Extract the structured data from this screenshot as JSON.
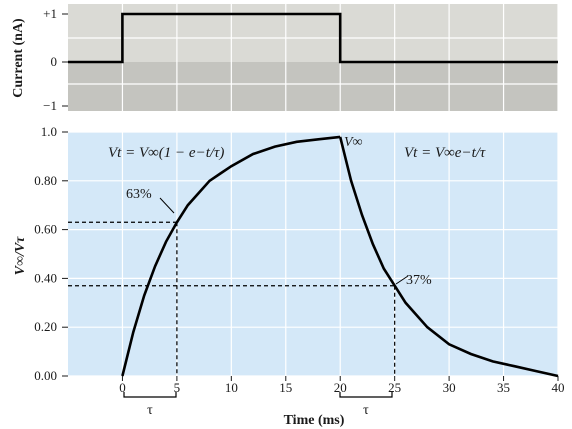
{
  "chart_data": [
    {
      "type": "line",
      "panel": "current",
      "ylabel": "Current (nA)",
      "yticks": [
        "+1",
        "0",
        "−1"
      ],
      "ytick_values": [
        1,
        0,
        -1
      ],
      "ylim": [
        -1.2,
        1.2
      ],
      "xlim": [
        -5,
        40
      ],
      "grid": true,
      "series": [
        {
          "x": [
            -5,
            0,
            0,
            20,
            20,
            40
          ],
          "y": [
            0,
            0,
            1,
            1,
            0,
            0
          ]
        }
      ],
      "colors": {
        "positive_region": "#dadad5",
        "negative_region": "#c4c4bf",
        "line": "#000000"
      }
    },
    {
      "type": "line",
      "panel": "voltage",
      "xlabel": "Time (ms)",
      "ylabel": "V∞/Vτ",
      "xticks": [
        "0",
        "5",
        "10",
        "15",
        "20",
        "25",
        "30",
        "35",
        "40"
      ],
      "xtick_values": [
        0,
        5,
        10,
        15,
        20,
        25,
        30,
        35,
        40
      ],
      "yticks": [
        "1.0",
        "0.80",
        "0.60",
        "0.40",
        "0.20",
        "0.00"
      ],
      "ytick_values": [
        1.0,
        0.8,
        0.6,
        0.4,
        0.2,
        0.0
      ],
      "xlim": [
        -5,
        40
      ],
      "ylim": [
        0,
        1.0
      ],
      "grid": true,
      "tau_ms": 5,
      "series": [
        {
          "x": [
            0,
            1,
            2,
            3,
            4,
            5,
            6,
            7,
            8,
            9,
            10,
            12,
            14,
            16,
            18,
            20
          ],
          "y": [
            0.0,
            0.18,
            0.33,
            0.45,
            0.55,
            0.63,
            0.7,
            0.75,
            0.8,
            0.83,
            0.86,
            0.91,
            0.94,
            0.96,
            0.97,
            0.98
          ]
        },
        {
          "x": [
            20,
            21,
            22,
            23,
            24,
            25,
            26,
            28,
            30,
            32,
            34,
            36,
            38,
            40
          ],
          "y": [
            0.98,
            0.8,
            0.66,
            0.54,
            0.44,
            0.37,
            0.3,
            0.2,
            0.13,
            0.09,
            0.06,
            0.04,
            0.02,
            0.0
          ]
        }
      ],
      "annotations": [
        {
          "text": "63%",
          "x": 5,
          "y": 0.63
        },
        {
          "text": "37%",
          "x": 25,
          "y": 0.37
        },
        {
          "text": "V∞",
          "x": 20,
          "y": 1.0
        }
      ],
      "equations": {
        "rise": "Vt = V∞(1 − e−t/τ)",
        "decay": "Vt = V∞e−t/τ"
      },
      "tau_label": "τ",
      "colors": {
        "background": "#d4e8f8",
        "line": "#000000"
      }
    }
  ]
}
